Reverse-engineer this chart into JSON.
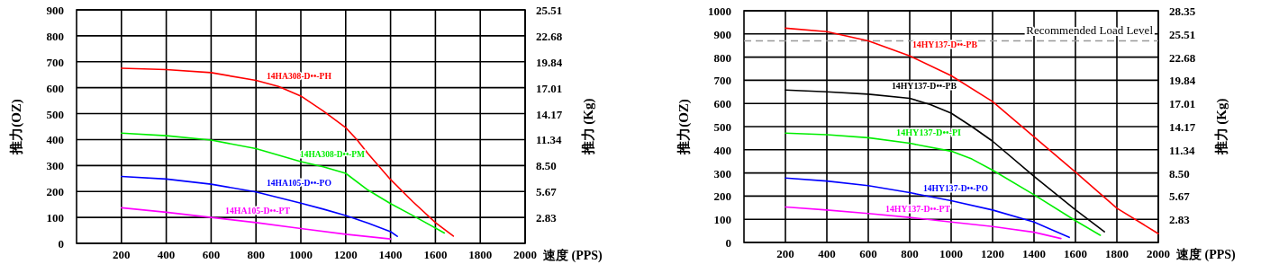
{
  "chart_data": [
    {
      "type": "line",
      "xlabel": "速度 (PPS)",
      "ylabel": "推力(OZ)",
      "y2label": "推力 (Kg)",
      "xlim": [
        0,
        2000
      ],
      "xticks": [
        200,
        400,
        600,
        800,
        1000,
        1200,
        1400,
        1600,
        1800,
        2000
      ],
      "ylim": [
        0,
        900
      ],
      "yticks": [
        0,
        100,
        200,
        300,
        400,
        500,
        600,
        700,
        800,
        900
      ],
      "y2lim": [
        0,
        25.51
      ],
      "y2ticks": [
        2.83,
        5.67,
        {
          "value": 8.5,
          "label": "8.50"
        },
        11.34,
        14.17,
        17.01,
        19.84,
        22.68,
        25.51
      ],
      "grid": true,
      "legend": false,
      "line_style": "solid",
      "marker": "none",
      "series": [
        {
          "name": "14HA308-D••-PH",
          "color": "#ff0000",
          "x": [
            200,
            400,
            600,
            800,
            900,
            1000,
            1100,
            1200,
            1250,
            1300,
            1400,
            1500,
            1600,
            1680
          ],
          "values": [
            675,
            670,
            658,
            628,
            605,
            568,
            510,
            446,
            400,
            345,
            246,
            160,
            80,
            28
          ]
        },
        {
          "name": "14HA308-D••-PM",
          "color": "#00ee00",
          "x": [
            200,
            400,
            600,
            800,
            1000,
            1100,
            1200,
            1300,
            1400,
            1500,
            1640
          ],
          "values": [
            425,
            415,
            398,
            365,
            315,
            295,
            270,
            205,
            153,
            107,
            40
          ]
        },
        {
          "name": "14HA105-D••-PO",
          "color": "#0000ff",
          "x": [
            200,
            400,
            600,
            800,
            1000,
            1100,
            1200,
            1300,
            1400,
            1430
          ],
          "values": [
            258,
            248,
            228,
            198,
            155,
            132,
            107,
            78,
            45,
            27
          ]
        },
        {
          "name": "14HA105-D••-PT",
          "color": "#ff00ff",
          "x": [
            200,
            400,
            600,
            800,
            1000,
            1200,
            1400
          ],
          "values": [
            137,
            120,
            100,
            80,
            57,
            35,
            17
          ]
        }
      ]
    },
    {
      "type": "line",
      "xlabel": "速度 (PPS)",
      "ylabel": "推力(OZ)",
      "y2label": "推力 (Kg)",
      "xlim": [
        0,
        2000
      ],
      "xticks": [
        200,
        400,
        600,
        800,
        1000,
        1200,
        1400,
        1600,
        1800,
        2000
      ],
      "ylim": [
        0,
        1000
      ],
      "yticks": [
        0,
        100,
        200,
        300,
        400,
        500,
        600,
        700,
        800,
        900,
        1000
      ],
      "y2lim": [
        0,
        28.35
      ],
      "y2ticks": [
        2.83,
        5.67,
        {
          "value": 8.5,
          "label": "8.50"
        },
        11.34,
        14.17,
        17.01,
        19.84,
        22.68,
        25.51,
        28.35
      ],
      "grid": true,
      "legend": false,
      "line_style": "solid",
      "marker": "none",
      "ref_lines": [
        {
          "axis": "y",
          "value": 870,
          "label": "Recommended Load Level",
          "color": "#999999",
          "line_style": "dashed"
        }
      ],
      "series": [
        {
          "name": "14HY137-D••-PB",
          "color": "#ff0000",
          "x": [
            200,
            400,
            600,
            800,
            1000,
            1200,
            1400,
            1600,
            1800,
            2000
          ],
          "values": [
            925,
            910,
            870,
            805,
            720,
            608,
            456,
            304,
            148,
            38
          ]
        },
        {
          "name": "14HY137-D••-PB",
          "color": "#000000",
          "x": [
            200,
            400,
            600,
            800,
            900,
            1000,
            1100,
            1200,
            1400,
            1600,
            1740
          ],
          "values": [
            658,
            650,
            640,
            622,
            595,
            558,
            500,
            437,
            285,
            141,
            46
          ]
        },
        {
          "name": "14HY137-D••-PI",
          "color": "#00ee00",
          "x": [
            200,
            400,
            600,
            800,
            1000,
            1100,
            1200,
            1400,
            1600,
            1720
          ],
          "values": [
            472,
            465,
            452,
            428,
            394,
            360,
            312,
            206,
            94,
            31
          ]
        },
        {
          "name": "14HY137-D••-PO",
          "color": "#0000ff",
          "x": [
            200,
            400,
            600,
            800,
            1000,
            1200,
            1400,
            1570
          ],
          "values": [
            278,
            265,
            245,
            215,
            180,
            140,
            88,
            22
          ]
        },
        {
          "name": "14HY137-D••-PT",
          "color": "#ff00ff",
          "x": [
            200,
            400,
            600,
            800,
            1000,
            1200,
            1400,
            1530
          ],
          "values": [
            153,
            140,
            125,
            108,
            88,
            69,
            44,
            17
          ]
        }
      ]
    }
  ]
}
